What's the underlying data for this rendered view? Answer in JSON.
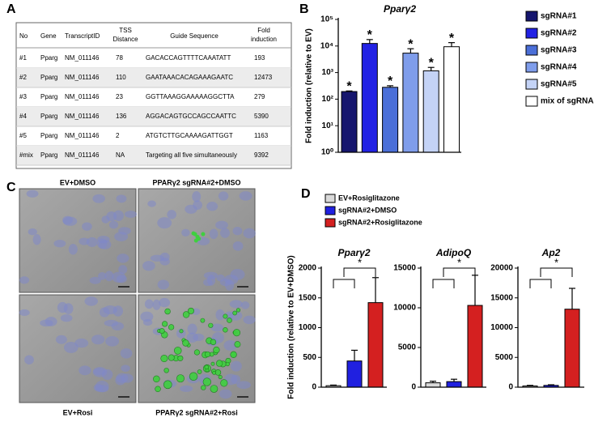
{
  "panel_labels": [
    "A",
    "B",
    "C",
    "D"
  ],
  "table": {
    "headers": [
      [
        "No"
      ],
      [
        "Gene"
      ],
      [
        "TranscriptID"
      ],
      [
        "TSS",
        "Distance"
      ],
      [
        "Guide Sequence"
      ],
      [
        "Fold",
        "induction"
      ]
    ],
    "rows": [
      [
        "#1",
        "Pparg",
        "NM_011146",
        "78",
        "GACACCAGTTTTCAAATATT",
        "193"
      ],
      [
        "#2",
        "Pparg",
        "NM_011146",
        "110",
        "GAATAAACACAGAAAGAATC",
        "12473"
      ],
      [
        "#3",
        "Pparg",
        "NM_011146",
        "23",
        "GGTTAAAGGAAAAAGGCTTA",
        "279"
      ],
      [
        "#4",
        "Pparg",
        "NM_011146",
        "136",
        "AGGACAGTGCCAGCCAATTC",
        "5390"
      ],
      [
        "#5",
        "Pparg",
        "NM_011146",
        "2",
        "ATGTCTTGCAAAAGATTGGT",
        "1163"
      ],
      [
        "#mix",
        "Pparg",
        "NM_011146",
        "NA",
        "Targeting all five simultaneously",
        "9392"
      ]
    ]
  },
  "images": {
    "labels": [
      "EV+DMSO",
      "PPARγ2 sgRNA#2+DMSO",
      "EV+Rosi",
      "PPARγ2 sgRNA#2+Rosi"
    ]
  },
  "panel_d": {
    "y_label": "Fold induction (relative to EV+DMSO)",
    "legend": [
      {
        "name": "EV+Rosiglitazone",
        "color": "#d9d9d9"
      },
      {
        "name": "sgRNA#2+DMSO",
        "color": "#2020e0"
      },
      {
        "name": "sgRNA#2+Rosiglitazone",
        "color": "#d42020"
      }
    ]
  },
  "chart_data": [
    {
      "type": "bar",
      "title": "Pparγ2",
      "y_label": "Fold induction (relative to EV)",
      "categories": [
        "sgRNA#1",
        "sgRNA#2",
        "sgRNA#3",
        "sgRNA#4",
        "sgRNA#5",
        "mix of sgRNAs"
      ],
      "colors": [
        "#16166e",
        "#2222e4",
        "#4b6fd8",
        "#7f9deb",
        "#c4d3f6",
        "#ffffff"
      ],
      "values": [
        193,
        12473,
        279,
        5390,
        1163,
        9392
      ],
      "errors": [
        10,
        5000,
        40,
        2500,
        400,
        4000
      ],
      "bar_annotation": "*",
      "log_scale": true,
      "ylim": [
        1,
        100000
      ],
      "yticks": [
        {
          "value": 1,
          "label": "10⁰"
        },
        {
          "value": 10,
          "label": "10¹"
        },
        {
          "value": 100,
          "label": "10²"
        },
        {
          "value": 1000,
          "label": "10³"
        },
        {
          "value": 10000,
          "label": "10⁴"
        },
        {
          "value": 100000,
          "label": "10⁵"
        }
      ]
    },
    {
      "type": "bar",
      "title": "Pparγ2",
      "values": [
        25,
        440,
        1420
      ],
      "errors": [
        10,
        180,
        420
      ],
      "significance": "*",
      "ylim": [
        0,
        2000
      ],
      "yticks": [
        0,
        500,
        1000,
        1500,
        2000
      ]
    },
    {
      "type": "bar",
      "title": "AdipoQ",
      "values": [
        550,
        700,
        10300
      ],
      "errors": [
        200,
        300,
        3800
      ],
      "significance": "*",
      "ylim": [
        0,
        15000
      ],
      "yticks": [
        0,
        5000,
        10000,
        15000
      ]
    },
    {
      "type": "bar",
      "title": "Ap2",
      "values": [
        200,
        300,
        13100
      ],
      "errors": [
        100,
        100,
        3500
      ],
      "significance": "*",
      "ylim": [
        0,
        20000
      ],
      "yticks": [
        0,
        5000,
        10000,
        15000,
        20000
      ]
    }
  ]
}
